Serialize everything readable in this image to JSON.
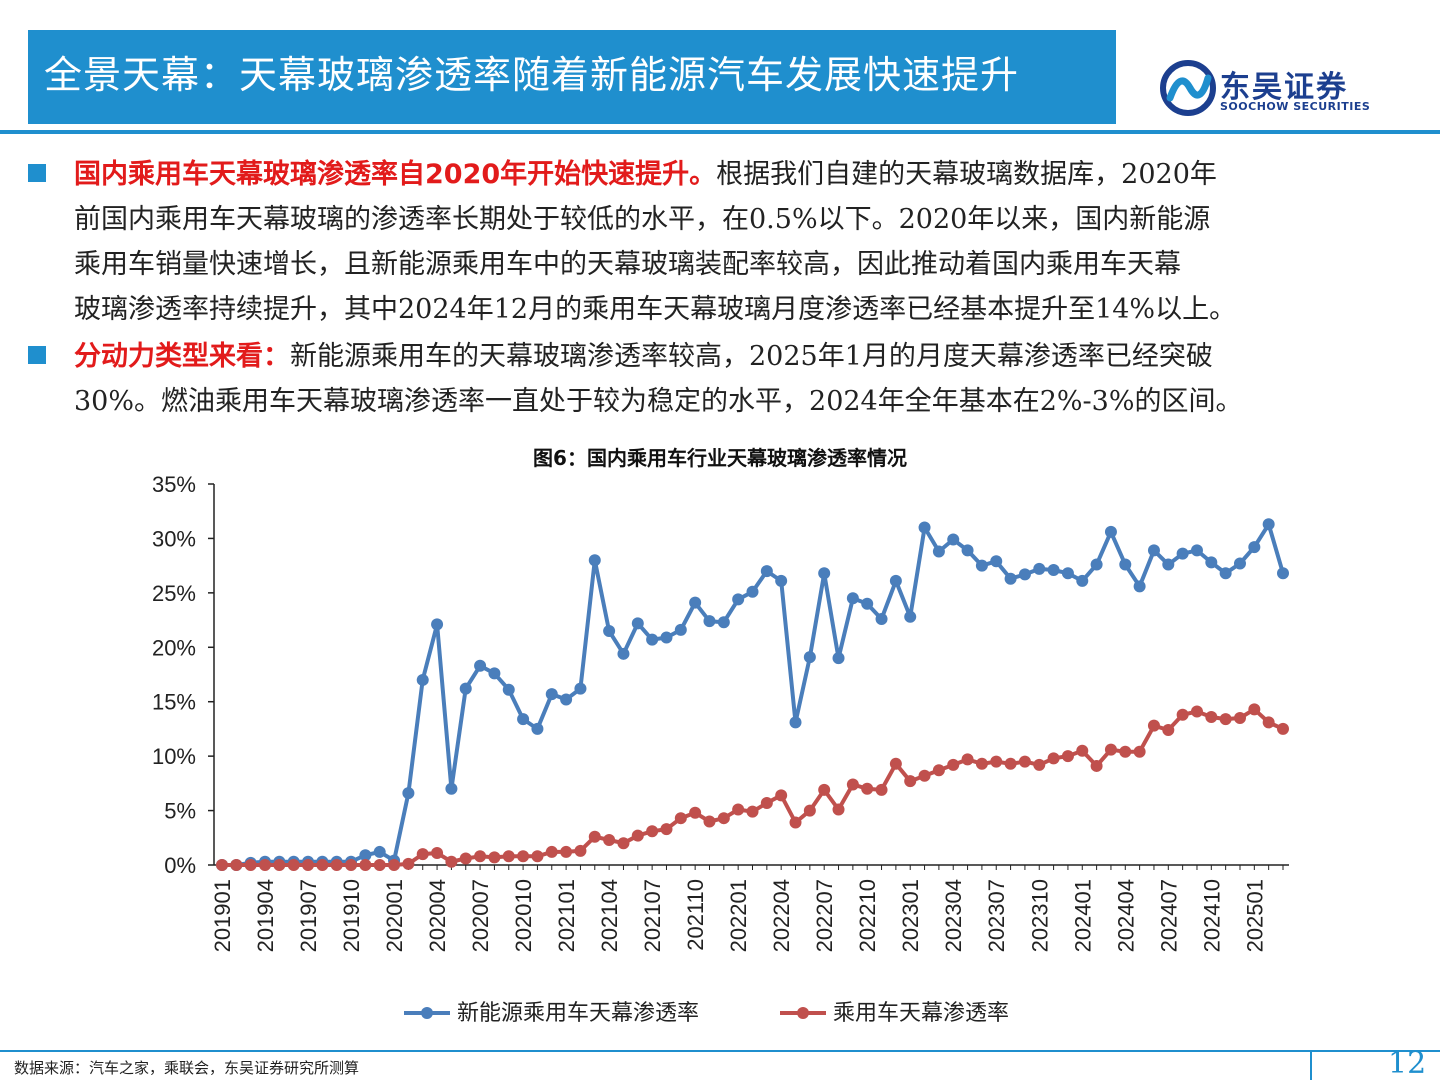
{
  "header": {
    "title": "全景天幕：天幕玻璃渗透率随着新能源汽车发展快速提升",
    "logo_cn": "东吴证券",
    "logo_en": "SOOCHOW SECURITIES"
  },
  "body": {
    "p1_highlight": "国内乘用车天幕玻璃渗透率自2020年开始快速提升。",
    "p1_line1_rest": "根据我们自建的天幕玻璃数据库，2020年",
    "p1_line2": "前国内乘用车天幕玻璃的渗透率长期处于较低的水平，在0.5%以下。2020年以来，国内新能源",
    "p1_line3": "乘用车销量快速增长，且新能源乘用车中的天幕玻璃装配率较高，因此推动着国内乘用车天幕",
    "p1_line4": "玻璃渗透率持续提升，其中2024年12月的乘用车天幕玻璃月度渗透率已经基本提升至14%以上。",
    "p2_highlight": "分动力类型来看：",
    "p2_line1_rest": "新能源乘用车的天幕玻璃渗透率较高，2025年1月的月度天幕渗透率已经突破",
    "p2_line2": "30%。燃油乘用车天幕玻璃渗透率一直处于较为稳定的水平，2024年全年基本在2%-3%的区间。"
  },
  "footer": {
    "source": "数据来源：汽车之家，乘联会，东吴证券研究所测算",
    "page": "12"
  },
  "colors": {
    "accent": "#1f8fce",
    "series1": "#4a7ebb",
    "series2": "#c0504d",
    "highlight": "#e21b1b"
  },
  "chart_data": {
    "type": "line",
    "title": "图6：国内乘用车行业天幕玻璃渗透率情况",
    "ylim": [
      0,
      35
    ],
    "yticks": [
      "0%",
      "5%",
      "10%",
      "15%",
      "20%",
      "25%",
      "30%",
      "35%"
    ],
    "xtick_labels": [
      "201901",
      "201904",
      "201907",
      "201910",
      "202001",
      "202004",
      "202007",
      "202010",
      "202101",
      "202104",
      "202107",
      "202110",
      "202201",
      "202204",
      "202207",
      "202210",
      "202301",
      "202304",
      "202307",
      "202310",
      "202401",
      "202404",
      "202407",
      "202410",
      "202501"
    ],
    "x_start": "201901",
    "x_end": "202502",
    "legend_position": "bottom",
    "series": [
      {
        "name": "新能源乘用车天幕渗透率",
        "color": "#4a7ebb",
        "values": [
          0,
          0,
          0.2,
          0.3,
          0.3,
          0.3,
          0.3,
          0.3,
          0.3,
          0.3,
          0.9,
          1.2,
          0.4,
          6.6,
          17,
          22.1,
          7,
          16.2,
          18.3,
          17.6,
          16.1,
          13.4,
          12.5,
          15.7,
          15.2,
          16.2,
          28,
          21.5,
          19.4,
          22.2,
          20.7,
          20.9,
          21.6,
          24.1,
          22.4,
          22.3,
          24.4,
          25.1,
          27,
          26.1,
          13.1,
          19.1,
          26.8,
          19,
          24.5,
          24,
          22.6,
          26.1,
          22.8,
          31,
          28.8,
          29.9,
          28.9,
          27.5,
          27.9,
          26.3,
          26.7,
          27.2,
          27.1,
          26.8,
          26.1,
          27.6,
          30.6,
          27.6,
          25.6,
          28.9,
          27.6,
          28.6,
          28.9,
          27.8,
          26.8,
          27.7,
          29.2,
          31.3,
          26.8
        ]
      },
      {
        "name": "乘用车天幕渗透率",
        "color": "#c0504d",
        "values": [
          0,
          0,
          0,
          0,
          0,
          0,
          0,
          0,
          0,
          0,
          0,
          0,
          0,
          0.1,
          1,
          1.1,
          0.3,
          0.6,
          0.8,
          0.7,
          0.8,
          0.8,
          0.8,
          1.2,
          1.2,
          1.3,
          2.6,
          2.3,
          2,
          2.7,
          3.1,
          3.3,
          4.3,
          4.8,
          4,
          4.3,
          5.1,
          4.9,
          5.7,
          6.4,
          3.9,
          5,
          6.9,
          5.1,
          7.4,
          7,
          6.9,
          9.3,
          7.7,
          8.2,
          8.7,
          9.2,
          9.7,
          9.3,
          9.5,
          9.3,
          9.5,
          9.2,
          9.8,
          10,
          10.5,
          9.1,
          10.6,
          10.4,
          10.4,
          12.8,
          12.4,
          13.8,
          14.1,
          13.6,
          13.4,
          13.5,
          14.3,
          13.1,
          12.5
        ]
      }
    ]
  }
}
